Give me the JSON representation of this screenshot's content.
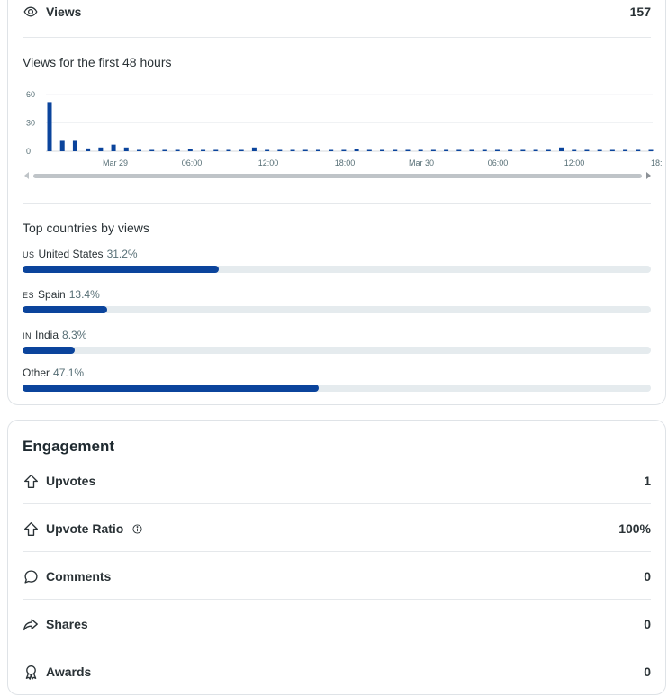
{
  "views": {
    "icon": "eye-icon",
    "label": "Views",
    "value": "157"
  },
  "chart_section": {
    "title": "Views for the first 48 hours"
  },
  "chart_data": {
    "type": "bar",
    "title": "Views for the first 48 hours",
    "xlabel": "",
    "ylabel": "",
    "ylim": [
      0,
      60
    ],
    "yticks": [
      "60",
      "30",
      "0"
    ],
    "xticks": [
      "Mar 29",
      "06:00",
      "12:00",
      "18:00",
      "Mar 30",
      "06:00",
      "12:00",
      "18:"
    ],
    "grid": true,
    "color": "#0b449c",
    "values": [
      52,
      11,
      11,
      3,
      4,
      7,
      4,
      0,
      0,
      0,
      0,
      2,
      0,
      1,
      0,
      0,
      4,
      1,
      0,
      0,
      0,
      0,
      0,
      0,
      2,
      0,
      0,
      0,
      0,
      0,
      0,
      0,
      0,
      0,
      0,
      0,
      0,
      0,
      0,
      0,
      4,
      0,
      0,
      0,
      0,
      0,
      0,
      0
    ]
  },
  "countries": {
    "title": "Top countries by views",
    "items": [
      {
        "code": "US",
        "name": "United States",
        "pct": "31.2%",
        "fraction": 0.312
      },
      {
        "code": "ES",
        "name": "Spain",
        "pct": "13.4%",
        "fraction": 0.134
      },
      {
        "code": "IN",
        "name": "India",
        "pct": "8.3%",
        "fraction": 0.083
      },
      {
        "code": "",
        "name": "Other",
        "pct": "47.1%",
        "fraction": 0.471
      }
    ]
  },
  "engagement": {
    "title": "Engagement",
    "rows": [
      {
        "icon": "upvote-arrow-icon",
        "label": "Upvotes",
        "value": "1"
      },
      {
        "icon": "upvote-arrow-icon",
        "label": "Upvote Ratio",
        "value": "100%",
        "info": true
      },
      {
        "icon": "comment-bubble-icon",
        "label": "Comments",
        "value": "0"
      },
      {
        "icon": "share-arrow-icon",
        "label": "Shares",
        "value": "0"
      },
      {
        "icon": "award-icon",
        "label": "Awards",
        "value": "0"
      }
    ]
  }
}
